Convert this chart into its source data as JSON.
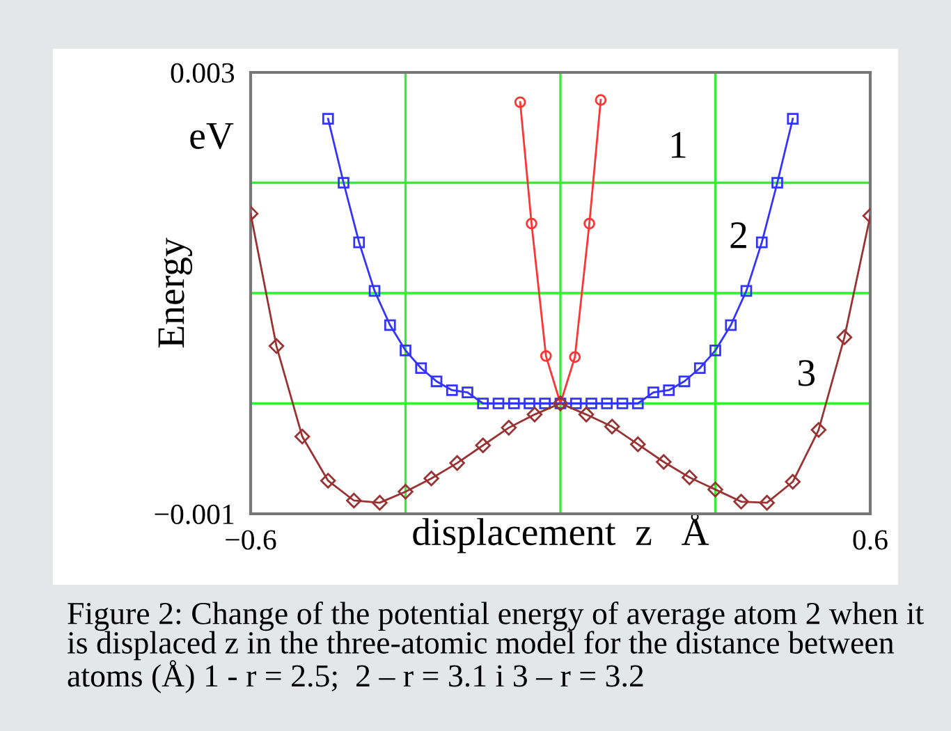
{
  "chart_data": {
    "type": "line",
    "xlabel": "displacement  z   Å",
    "ylabel": "Energy",
    "xlim": [
      -0.6,
      0.6
    ],
    "ylim": [
      -0.001,
      0.003
    ],
    "xticks": [
      -0.6,
      {
        "value": -0.3,
        "label": null
      },
      {
        "value": 0,
        "label": null
      },
      {
        "value": 0.3,
        "label": null
      },
      0.6
    ],
    "yticks": [
      -0.001,
      {
        "value": 0,
        "label": null
      },
      {
        "value": 0.001,
        "label": null
      },
      {
        "value": 0.002,
        "label": null
      },
      0.003
    ],
    "grid": true,
    "line_style": "solid",
    "series": [
      {
        "name": "1",
        "color": "#ff3333",
        "marker": "circle",
        "x": [
          -0.078,
          -0.056,
          -0.028,
          0,
          0.028,
          0.056,
          0.078
        ],
        "values": [
          0.00273,
          0.00163,
          0.00043,
          0,
          0.00042,
          0.00163,
          0.00275
        ]
      },
      {
        "name": "2",
        "color": "#3333ff",
        "marker": "square",
        "x": [
          -0.45,
          -0.42,
          -0.39,
          -0.36,
          -0.33,
          -0.3,
          -0.27,
          -0.24,
          -0.21,
          -0.18,
          -0.15,
          -0.12,
          -0.09,
          -0.06,
          -0.03,
          0,
          0.03,
          0.06,
          0.09,
          0.12,
          0.15,
          0.18,
          0.21,
          0.24,
          0.27,
          0.3,
          0.33,
          0.36,
          0.39,
          0.42,
          0.45
        ],
        "values": [
          0.00258,
          0.002,
          0.00146,
          0.00102,
          0.00071,
          0.00048,
          0.00032,
          0.0002,
          0.00012,
          0.0001,
          0,
          0,
          0,
          0,
          0,
          0,
          0,
          0,
          0,
          0,
          0,
          0.0001,
          0.00012,
          0.0002,
          0.00032,
          0.00048,
          0.00071,
          0.00102,
          0.00146,
          0.002,
          0.00258
        ]
      },
      {
        "name": "3",
        "color": "#993333",
        "marker": "diamond",
        "x": [
          -0.6,
          -0.55,
          -0.5,
          -0.45,
          -0.4,
          -0.35,
          -0.3,
          -0.25,
          -0.2,
          -0.15,
          -0.1,
          -0.05,
          0,
          0.05,
          0.1,
          0.15,
          0.2,
          0.25,
          0.3,
          0.35,
          0.4,
          0.45,
          0.5,
          0.55,
          0.6
        ],
        "values": [
          0.00172,
          0.00052,
          -0.0003,
          -0.0007,
          -0.00088,
          -0.0009,
          -0.0008,
          -0.00068,
          -0.00054,
          -0.00038,
          -0.00022,
          -0.0001,
          0,
          -0.0001,
          -0.00021,
          -0.00037,
          -0.00053,
          -0.00067,
          -0.00078,
          -0.00089,
          -0.0009,
          -0.00071,
          -0.00024,
          0.0006,
          0.0017
        ]
      }
    ],
    "annotations": [
      "eV",
      "Figure 2: Change of the potential energy of average atom 2 when it is displaced z in the three-atomic model for the distance between atoms (Å) 1 - r = 2.5;  2 – r = 3.1 i 3 – r = 3.2"
    ]
  }
}
